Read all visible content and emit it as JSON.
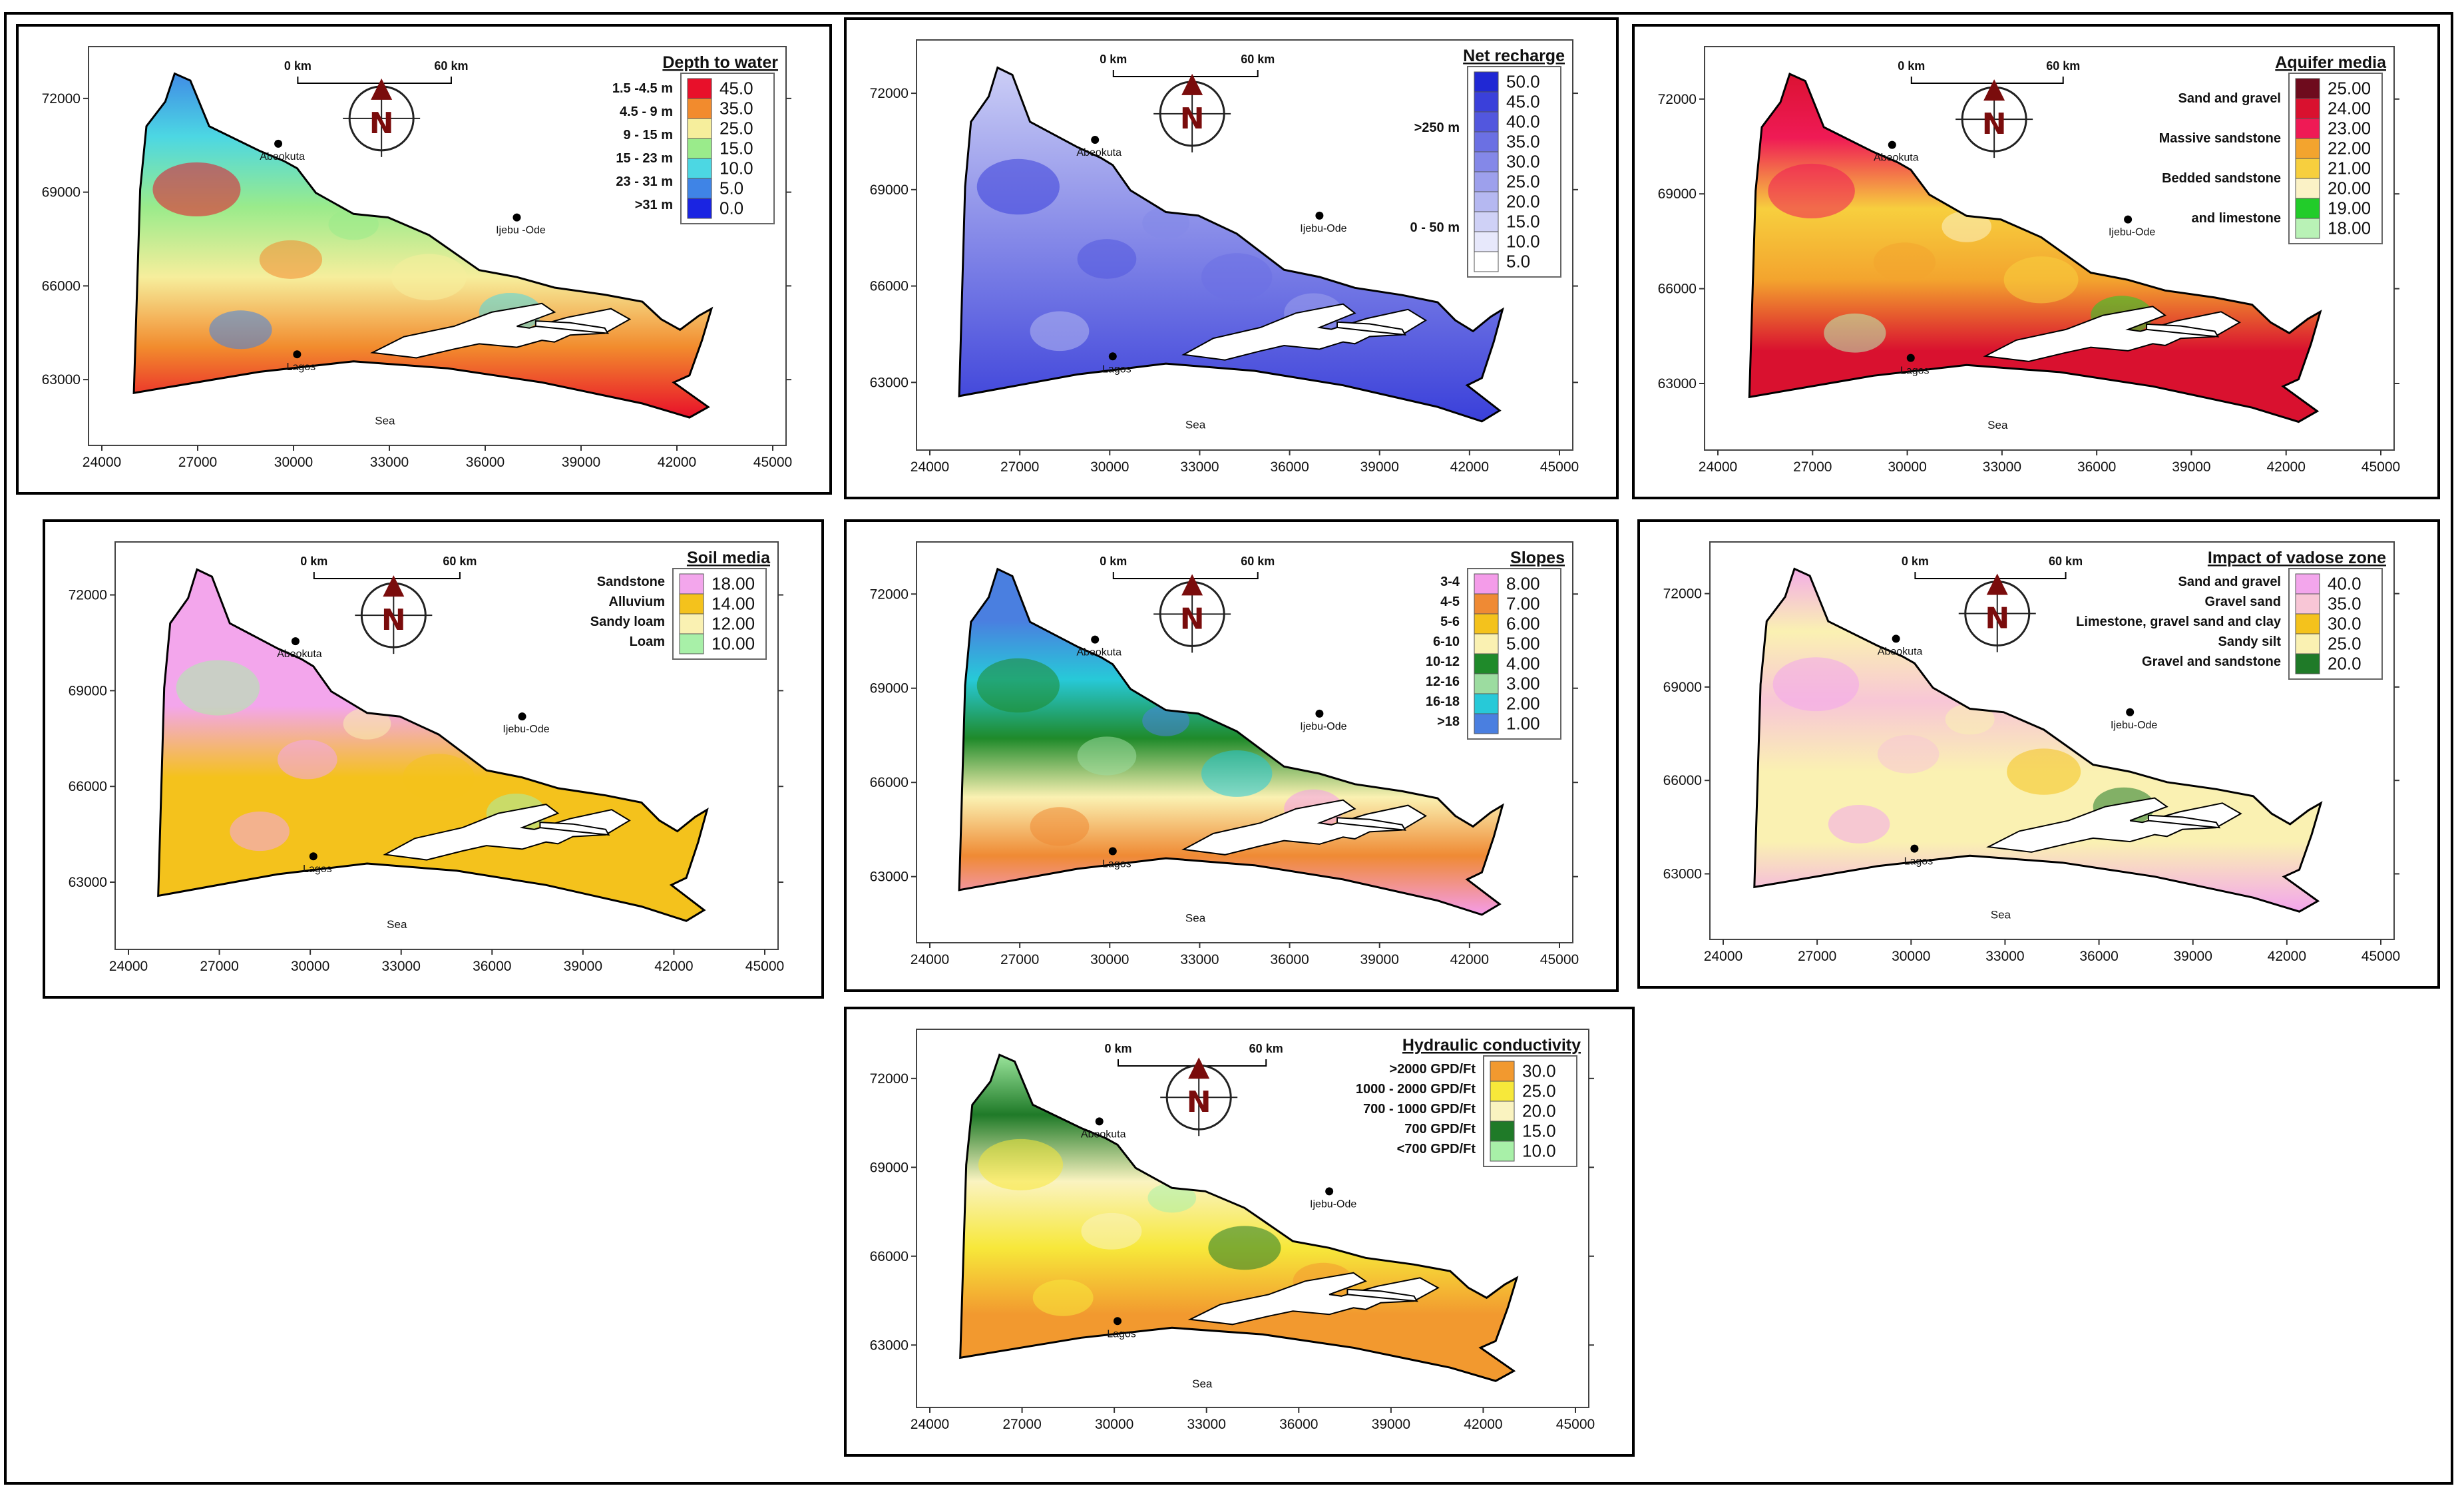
{
  "figure": {
    "caption_alt": "DRASTIC parameter maps"
  },
  "common": {
    "x_ticks": [
      "24000",
      "27000",
      "30000",
      "33000",
      "36000",
      "39000",
      "42000",
      "45000"
    ],
    "y_ticks": [
      "72000",
      "69000",
      "66000",
      "63000"
    ],
    "scale_start": "0 km",
    "scale_end": "60 km",
    "north_letter": "N",
    "sea_label": "Sea",
    "cities": {
      "abeokuta": "Abeokuta",
      "ijebu_ode": "Ijebu-Ode",
      "ijebu_ode_alt": "Ijebu -Ode",
      "lagos": "Lagos"
    }
  },
  "panels": [
    {
      "id": "depth",
      "title": "Depth to water",
      "legend_values": [
        "45.0",
        "35.0",
        "25.0",
        "15.0",
        "10.0",
        "5.0",
        "0.0"
      ],
      "legend_colors": [
        "#e8102a",
        "#f28b2d",
        "#f6ee9c",
        "#9aeb8b",
        "#4cd7e3",
        "#3f84e6",
        "#1a24e2"
      ],
      "classes": [
        "1.5 -4.5 m",
        "4.5 - 9 m",
        "9 - 15 m",
        "15 - 23 m",
        "23 - 31 m",
        ">31 m"
      ]
    },
    {
      "id": "recharge",
      "title": "Net recharge",
      "legend_values": [
        "50.0",
        "45.0",
        "40.0",
        "35.0",
        "30.0",
        "25.0",
        "20.0",
        "15.0",
        "10.0",
        "5.0"
      ],
      "legend_colors": [
        "#2028d4",
        "#3a40da",
        "#5257de",
        "#6b70e3",
        "#8488e8",
        "#9da0ec",
        "#b5b8f1",
        "#cfd1f6",
        "#e7e8fb",
        "#ffffff"
      ],
      "classes": [
        ">250 m",
        "0 - 50 m"
      ]
    },
    {
      "id": "aquifer",
      "title": "Aquifer media",
      "legend_values": [
        "25.00",
        "24.00",
        "23.00",
        "22.00",
        "21.00",
        "20.00",
        "19.00",
        "18.00"
      ],
      "legend_colors": [
        "#6e0b1d",
        "#d9112f",
        "#ef1a55",
        "#f3a42e",
        "#f7cf3e",
        "#fbf2c6",
        "#22cc2a",
        "#b9f2b6"
      ],
      "classes": [
        "Sand and gravel",
        "Massive sandstone",
        "Bedded sandstone",
        "and limestone"
      ]
    },
    {
      "id": "soil",
      "title": "Soil media",
      "legend_values": [
        "18.00",
        "14.00",
        "12.00",
        "10.00"
      ],
      "legend_colors": [
        "#f3a6ec",
        "#f4c21c",
        "#faf1b2",
        "#a8f0a8"
      ],
      "classes": [
        "Sandstone",
        "Alluvium",
        "Sandy loam",
        "Loam"
      ]
    },
    {
      "id": "slopes",
      "title": "Slopes",
      "legend_values": [
        "8.00",
        "7.00",
        "6.00",
        "5.00",
        "4.00",
        "3.00",
        "2.00",
        "1.00"
      ],
      "legend_colors": [
        "#f49ce9",
        "#ef8a34",
        "#f4c21c",
        "#faf1b2",
        "#1f8a2a",
        "#9cdca0",
        "#27c9d8",
        "#4a7fe0"
      ],
      "classes": [
        "3-4",
        "4-5",
        "5-6",
        "6-10",
        "10-12",
        "12-16",
        "16-18",
        ">18"
      ]
    },
    {
      "id": "vadose",
      "title": "Impact of vadose zone",
      "legend_values": [
        "40.0",
        "35.0",
        "30.0",
        "25.0",
        "20.0"
      ],
      "legend_colors": [
        "#f3a6ec",
        "#f8c6d6",
        "#f4c21c",
        "#faf1b2",
        "#1f7a28"
      ],
      "classes": [
        "Sand and gravel",
        "Gravel sand",
        "Limestone, gravel sand and clay",
        "Sandy silt",
        "Gravel and sandstone"
      ]
    },
    {
      "id": "conductivity",
      "title": "Hydraulic conductivity",
      "legend_values": [
        "30.0",
        "25.0",
        "20.0",
        "15.0",
        "10.0"
      ],
      "legend_colors": [
        "#f2992f",
        "#f7e83a",
        "#faf3c0",
        "#1f7a28",
        "#a8f0a8"
      ],
      "classes": [
        ">2000 GPD/Ft",
        "1000 - 2000 GPD/Ft",
        "700 - 1000 GPD/Ft",
        "700 GPD/Ft",
        "<700 GPD/Ft"
      ]
    }
  ]
}
